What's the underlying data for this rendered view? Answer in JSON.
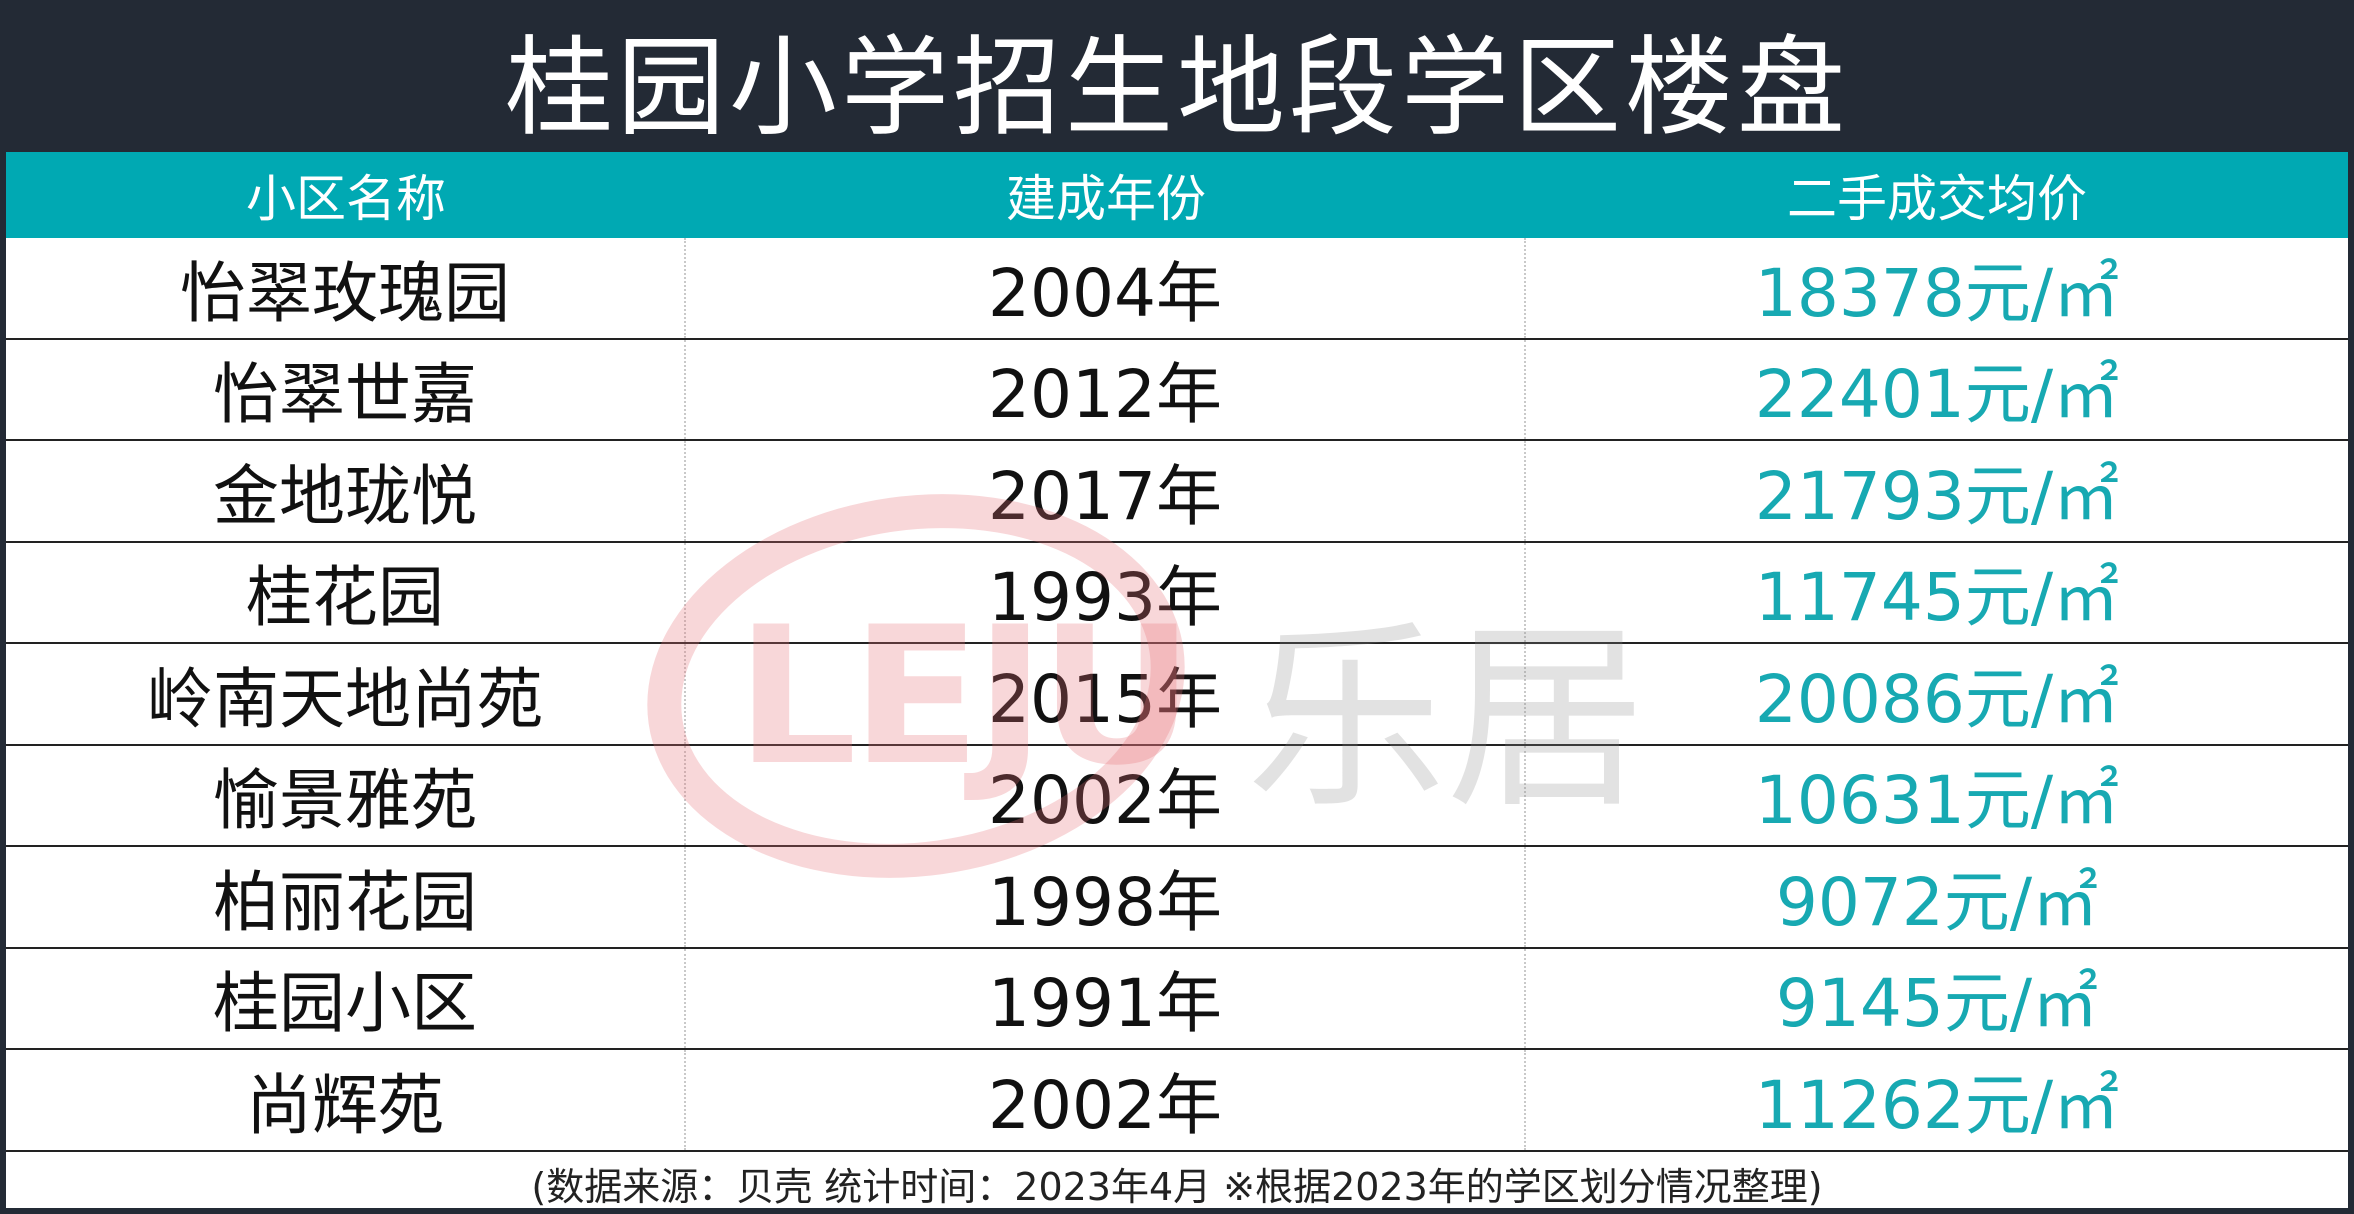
{
  "title": "桂园小学招生地段学区楼盘",
  "columns": [
    "小区名称",
    "建成年份",
    "二手成交均价"
  ],
  "rows": [
    {
      "name": "怡翠玫瑰园",
      "year": "2004年",
      "price": "18378元/㎡"
    },
    {
      "name": "怡翠世嘉",
      "year": "2012年",
      "price": "22401元/㎡"
    },
    {
      "name": "金地珑悦",
      "year": "2017年",
      "price": "21793元/㎡"
    },
    {
      "name": "桂花园",
      "year": "1993年",
      "price": "11745元/㎡"
    },
    {
      "name": "岭南天地尚苑",
      "year": "2015年",
      "price": "20086元/㎡"
    },
    {
      "name": "愉景雅苑",
      "year": "2002年",
      "price": "10631元/㎡"
    },
    {
      "name": "柏丽花园",
      "year": "1998年",
      "price": "9072元/㎡"
    },
    {
      "name": "桂园小区",
      "year": "1991年",
      "price": "9145元/㎡"
    },
    {
      "name": "尚辉苑",
      "year": "2002年",
      "price": "11262元/㎡"
    }
  ],
  "footer": "(数据来源：贝壳 统计时间：2023年4月 ※根据2023年的学区划分情况整理)",
  "watermark": {
    "logo_letters": "LEJU",
    "text": "乐居"
  },
  "colors": {
    "title_bg": "#232a35",
    "header_bg": "#00a9b3",
    "price_text": "#17a9b2"
  }
}
